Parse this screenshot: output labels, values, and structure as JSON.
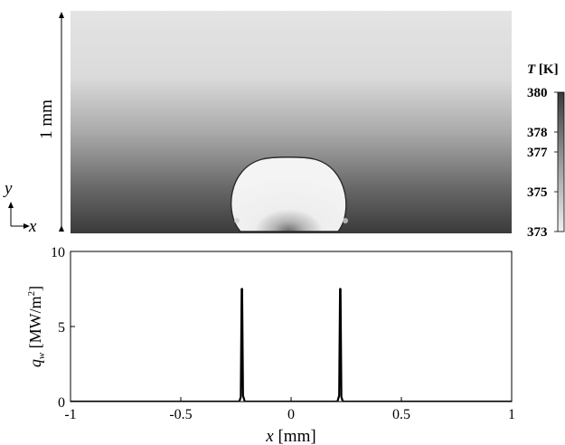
{
  "field_panel": {
    "scale_label": "1 mm",
    "y_axis_label": "y",
    "x_axis_label": "x",
    "colorbar": {
      "title": "T [K]",
      "tick_labels": [
        "380",
        "378",
        "377",
        "375",
        "373"
      ],
      "ticks": [
        380,
        378,
        377,
        375,
        373
      ],
      "range": [
        373,
        380
      ],
      "color_high": "#3a3a3a",
      "color_low": "#f0f0f0"
    },
    "colors": {
      "field_top": "#e3e3e3",
      "field_bottom": "#3c3c3c",
      "bubble_fill": "#f2f2f2",
      "bubble_edge": "#2a2a2a"
    }
  },
  "chart_data": {
    "type": "line",
    "xlabel": "x [mm]",
    "ylabel": "q_w [MW/m^2]",
    "xlim": [
      -1,
      1
    ],
    "ylim": [
      0,
      10
    ],
    "x_tick_labels": [
      "-1",
      "-0.5",
      "0",
      "0.5",
      "1"
    ],
    "x_ticks": [
      -1,
      -0.5,
      0,
      0.5,
      1
    ],
    "y_tick_labels": [
      "0",
      "5",
      "10"
    ],
    "y_ticks": [
      0,
      5,
      10
    ],
    "grid": false,
    "series": [
      {
        "x": [
          -1,
          -0.235,
          -0.228,
          -0.224,
          -0.222,
          -0.218,
          -0.21,
          0.21,
          0.218,
          0.222,
          0.224,
          0.228,
          0.235,
          1
        ],
        "y": [
          0,
          0,
          0.3,
          7.5,
          7.5,
          0.4,
          0,
          0,
          0.4,
          7.5,
          7.5,
          0.3,
          0,
          0
        ]
      }
    ]
  }
}
